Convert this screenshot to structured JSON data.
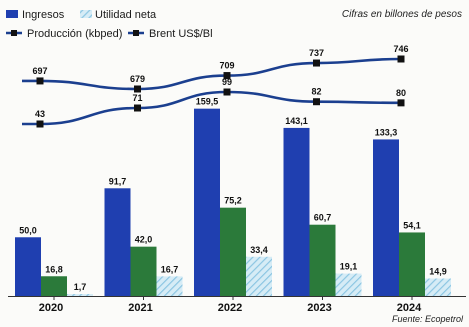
{
  "note": "Cifras en billones de pesos",
  "source": "Fuente: Ecopetrol",
  "colors": {
    "ingresos": "#1f3fb0",
    "third_bar": "#2b7a3a",
    "utilidad": "#9fd0e8",
    "produccion_line": "#1b3f8f",
    "brent_line": "#1b3f8f",
    "marker": "#111111"
  },
  "chart_data": {
    "type": "bar",
    "categories": [
      "2020",
      "2021",
      "2022",
      "2023",
      "2024"
    ],
    "series": [
      {
        "name": "Ingresos",
        "values": [
          50.0,
          91.7,
          159.5,
          143.1,
          133.3
        ],
        "labels": [
          "50,0",
          "91,7",
          "159,5",
          "143,1",
          "133,3"
        ]
      },
      {
        "values": [
          16.8,
          42.0,
          75.2,
          60.7,
          54.1
        ],
        "labels": [
          "16,8",
          "42,0",
          "75,2",
          "60,7",
          "54,1"
        ]
      },
      {
        "name": "Utilidad neta",
        "values": [
          1.7,
          16.7,
          33.4,
          19.1,
          14.9
        ],
        "labels": [
          "1,7",
          "16,7",
          "33,4",
          "19,1",
          "14,9"
        ]
      }
    ],
    "lines": [
      {
        "name": "Producción (kbped)",
        "values": [
          697,
          679,
          709,
          737,
          746
        ]
      },
      {
        "name": "Brent US$/Bl",
        "values": [
          43,
          71,
          99,
          82,
          80
        ]
      }
    ],
    "ylim": [
      0,
      170
    ],
    "legend": [
      "Ingresos",
      "Utilidad neta",
      "Producción (kbped)",
      "Brent US$/Bl"
    ],
    "legend_position": "top-left"
  }
}
